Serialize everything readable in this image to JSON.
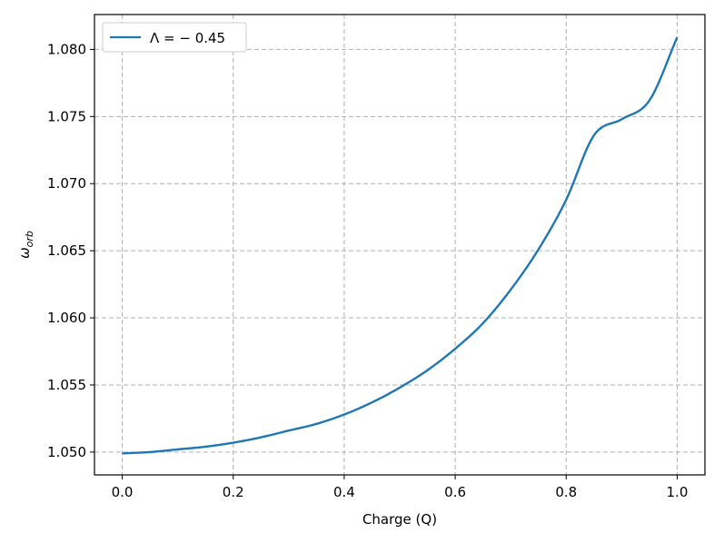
{
  "chart_data": {
    "type": "line",
    "title": "",
    "xlabel": "Charge (Q)",
    "ylabel": "ω",
    "ylabel_sub": "orb",
    "xlim": [
      -0.05,
      1.05
    ],
    "ylim": [
      1.0483,
      1.0826
    ],
    "xticks": [
      0.0,
      0.2,
      0.4,
      0.6,
      0.8,
      1.0
    ],
    "xtick_labels": [
      "0.0",
      "0.2",
      "0.4",
      "0.6",
      "0.8",
      "1.0"
    ],
    "yticks": [
      1.05,
      1.055,
      1.06,
      1.065,
      1.07,
      1.075,
      1.08
    ],
    "ytick_labels": [
      "1.050",
      "1.055",
      "1.060",
      "1.065",
      "1.070",
      "1.075",
      "1.080"
    ],
    "grid": true,
    "legend_position": "top-left",
    "series": [
      {
        "name": "Λ = − 0.45",
        "legend_main": "Λ = − 0.45",
        "color": "#1f77b4",
        "x": [
          0.0,
          0.05,
          0.1,
          0.15,
          0.2,
          0.25,
          0.3,
          0.35,
          0.4,
          0.45,
          0.5,
          0.55,
          0.6,
          0.65,
          0.7,
          0.75,
          0.8,
          0.85,
          0.9,
          0.95,
          1.0
        ],
        "y": [
          1.0499,
          1.05,
          1.0502,
          1.0504,
          1.0507,
          1.0511,
          1.0516,
          1.0521,
          1.0528,
          1.0537,
          1.0548,
          1.0561,
          1.0577,
          1.0596,
          1.0621,
          1.0651,
          1.0688,
          1.0736,
          1.0748,
          1.0762,
          1.0809
        ]
      }
    ]
  }
}
